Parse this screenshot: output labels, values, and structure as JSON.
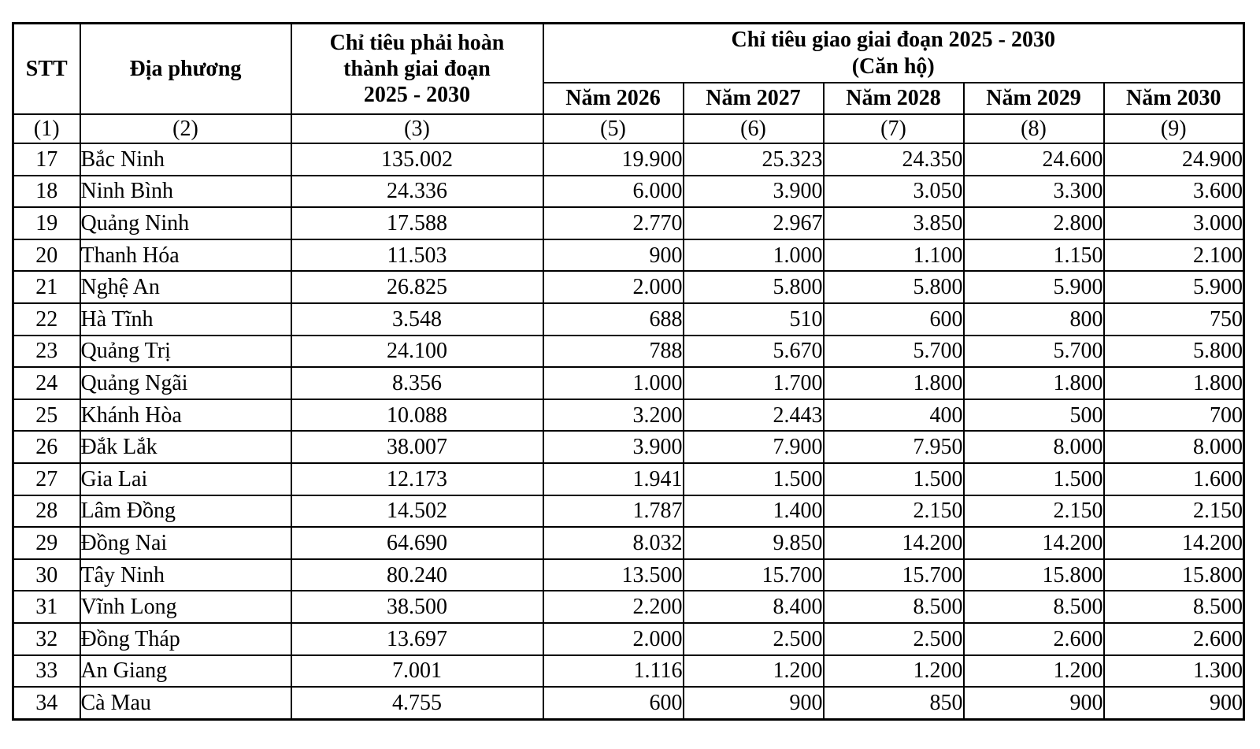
{
  "table": {
    "header": {
      "col_stt": "STT",
      "col_locality": "Địa phương",
      "col_target": "Chỉ tiêu phải hoàn\nthành giai đoạn\n2025 - 2030",
      "col_group": "Chỉ tiêu giao giai đoạn 2025 - 2030\n(Căn hộ)",
      "years": [
        "Năm 2026",
        "Năm 2027",
        "Năm 2028",
        "Năm 2029",
        "Năm 2030"
      ],
      "indices": [
        "(1)",
        "(2)",
        "(3)",
        "(5)",
        "(6)",
        "(7)",
        "(8)",
        "(9)"
      ]
    },
    "rows": [
      {
        "stt": "17",
        "locality": "Bắc Ninh",
        "target": "135.002",
        "y2026": "19.900",
        "y2027": "25.323",
        "y2028": "24.350",
        "y2029": "24.600",
        "y2030": "24.900"
      },
      {
        "stt": "18",
        "locality": "Ninh Bình",
        "target": "24.336",
        "y2026": "6.000",
        "y2027": "3.900",
        "y2028": "3.050",
        "y2029": "3.300",
        "y2030": "3.600"
      },
      {
        "stt": "19",
        "locality": "Quảng Ninh",
        "target": "17.588",
        "y2026": "2.770",
        "y2027": "2.967",
        "y2028": "3.850",
        "y2029": "2.800",
        "y2030": "3.000"
      },
      {
        "stt": "20",
        "locality": "Thanh Hóa",
        "target": "11.503",
        "y2026": "900",
        "y2027": "1.000",
        "y2028": "1.100",
        "y2029": "1.150",
        "y2030": "2.100"
      },
      {
        "stt": "21",
        "locality": "Nghệ An",
        "target": "26.825",
        "y2026": "2.000",
        "y2027": "5.800",
        "y2028": "5.800",
        "y2029": "5.900",
        "y2030": "5.900"
      },
      {
        "stt": "22",
        "locality": "Hà Tĩnh",
        "target": "3.548",
        "y2026": "688",
        "y2027": "510",
        "y2028": "600",
        "y2029": "800",
        "y2030": "750"
      },
      {
        "stt": "23",
        "locality": "Quảng Trị",
        "target": "24.100",
        "y2026": "788",
        "y2027": "5.670",
        "y2028": "5.700",
        "y2029": "5.700",
        "y2030": "5.800"
      },
      {
        "stt": "24",
        "locality": "Quảng Ngãi",
        "target": "8.356",
        "y2026": "1.000",
        "y2027": "1.700",
        "y2028": "1.800",
        "y2029": "1.800",
        "y2030": "1.800"
      },
      {
        "stt": "25",
        "locality": "Khánh Hòa",
        "target": "10.088",
        "y2026": "3.200",
        "y2027": "2.443",
        "y2028": "400",
        "y2029": "500",
        "y2030": "700"
      },
      {
        "stt": "26",
        "locality": "Đắk Lắk",
        "target": "38.007",
        "y2026": "3.900",
        "y2027": "7.900",
        "y2028": "7.950",
        "y2029": "8.000",
        "y2030": "8.000"
      },
      {
        "stt": "27",
        "locality": "Gia Lai",
        "target": "12.173",
        "y2026": "1.941",
        "y2027": "1.500",
        "y2028": "1.500",
        "y2029": "1.500",
        "y2030": "1.600"
      },
      {
        "stt": "28",
        "locality": "Lâm Đồng",
        "target": "14.502",
        "y2026": "1.787",
        "y2027": "1.400",
        "y2028": "2.150",
        "y2029": "2.150",
        "y2030": "2.150"
      },
      {
        "stt": "29",
        "locality": "Đồng Nai",
        "target": "64.690",
        "y2026": "8.032",
        "y2027": "9.850",
        "y2028": "14.200",
        "y2029": "14.200",
        "y2030": "14.200"
      },
      {
        "stt": "30",
        "locality": "Tây Ninh",
        "target": "80.240",
        "y2026": "13.500",
        "y2027": "15.700",
        "y2028": "15.700",
        "y2029": "15.800",
        "y2030": "15.800"
      },
      {
        "stt": "31",
        "locality": "Vĩnh Long",
        "target": "38.500",
        "y2026": "2.200",
        "y2027": "8.400",
        "y2028": "8.500",
        "y2029": "8.500",
        "y2030": "8.500"
      },
      {
        "stt": "32",
        "locality": "Đồng Tháp",
        "target": "13.697",
        "y2026": "2.000",
        "y2027": "2.500",
        "y2028": "2.500",
        "y2029": "2.600",
        "y2030": "2.600"
      },
      {
        "stt": "33",
        "locality": "An Giang",
        "target": "7.001",
        "y2026": "1.116",
        "y2027": "1.200",
        "y2028": "1.200",
        "y2029": "1.200",
        "y2030": "1.300"
      },
      {
        "stt": "34",
        "locality": "Cà Mau",
        "target": "4.755",
        "y2026": "600",
        "y2027": "900",
        "y2028": "850",
        "y2029": "900",
        "y2030": "900"
      }
    ]
  }
}
